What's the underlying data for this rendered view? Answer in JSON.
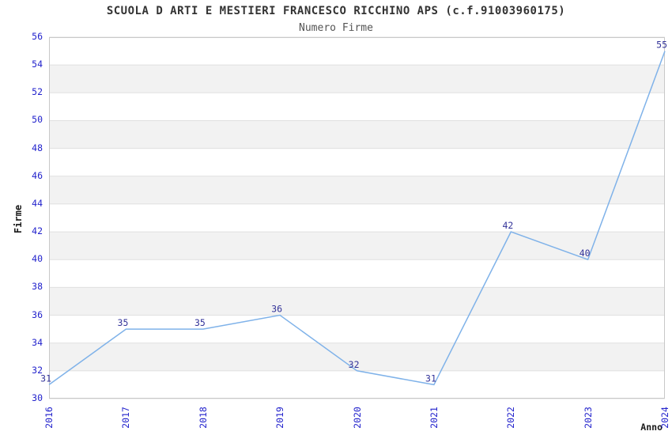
{
  "chart_data": {
    "type": "line",
    "title": "SCUOLA D ARTI E MESTIERI FRANCESCO RICCHINO APS (c.f.91003960175)",
    "subtitle": "Numero Firme",
    "x": [
      "2016",
      "2017",
      "2018",
      "2019",
      "2020",
      "2021",
      "2022",
      "2023",
      "2024"
    ],
    "values": [
      31,
      35,
      35,
      36,
      32,
      31,
      42,
      40,
      55
    ],
    "series_name": "Numero Firme",
    "xlabel": "Anno",
    "ylabel": "Firme",
    "ylim": [
      30,
      56
    ],
    "yticks": [
      30,
      32,
      34,
      36,
      38,
      40,
      42,
      44,
      46,
      48,
      50,
      52,
      54,
      56
    ],
    "grid": "alternating-horizontal-bands",
    "legend": "none",
    "colors": {
      "line": "#7FB2E9",
      "tick_label": "#2222CC",
      "data_label": "#333399",
      "band": "#F2F2F2",
      "gridline": "#E0E0E0",
      "border": "#C8C8C8",
      "title": "#333333",
      "subtitle": "#555555",
      "axis_title": "#1A1A1A"
    }
  }
}
